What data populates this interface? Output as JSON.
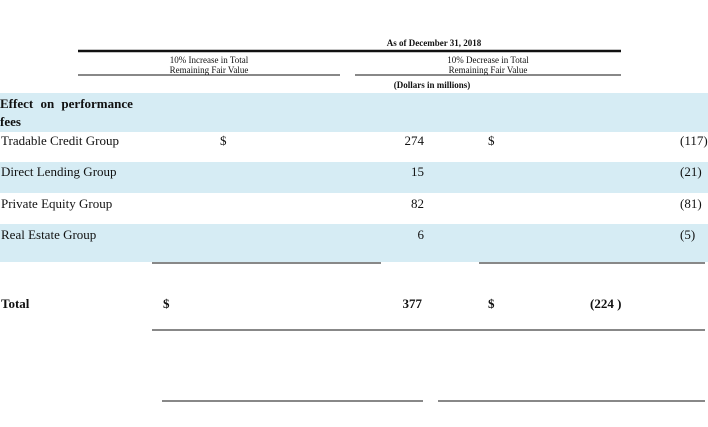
{
  "header": {
    "date": "As of December 31, 2018",
    "increase": "10% Increase in Total Remaining Fair Value",
    "decrease": "10% Decrease in Total Remaining Fair Value",
    "units": "(Dollars in millions)"
  },
  "table": {
    "section": "Effect on performance fees",
    "rows": [
      [
        "Tradable Credit Group",
        "$",
        "274",
        "$",
        "(117)"
      ],
      [
        "Direct Lending Group",
        "",
        "15",
        "",
        "(21)"
      ],
      [
        "Private Equity Group",
        "",
        "82",
        "",
        "(81)"
      ],
      [
        "Real Estate Group",
        "",
        "6",
        "",
        "(5)"
      ]
    ],
    "total": [
      "Total",
      "$",
      "377",
      "$",
      "(224 )"
    ]
  }
}
